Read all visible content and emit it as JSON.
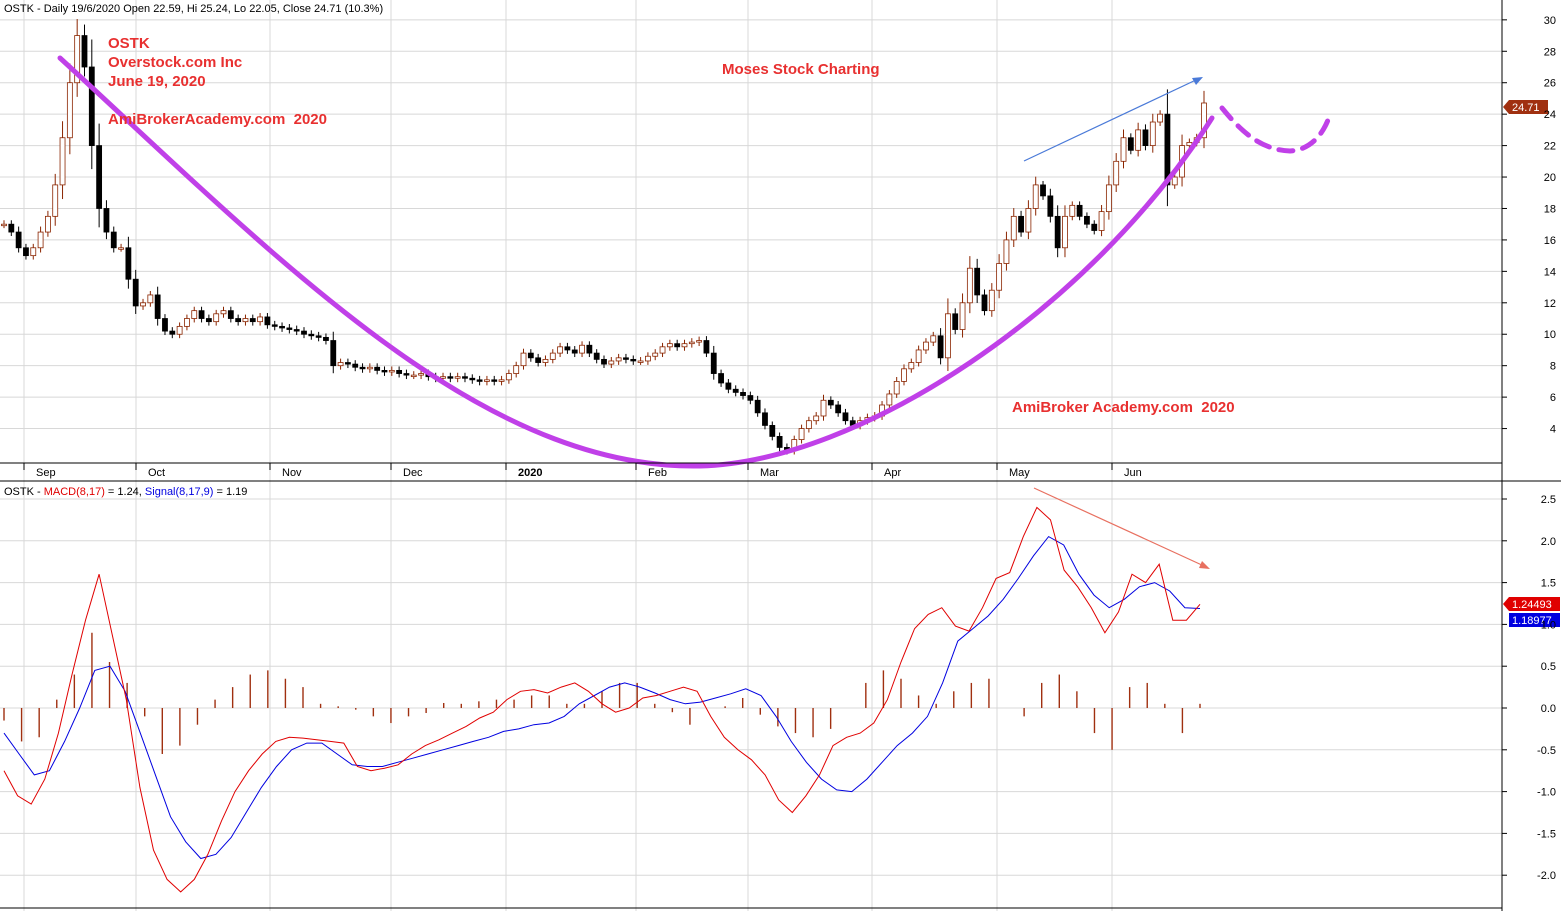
{
  "price_header": {
    "prefix": "OSTK - Daily 19/6/2020 Open 22.59, Hi 25.24, Lo 22.05, Close 24.71 (10.3%)"
  },
  "macd_header": {
    "prefix": "OSTK - ",
    "macd_label": "MACD(8,17)",
    "macd_value": " = 1.24, ",
    "signal_label": "Signal(8,17,9)",
    "signal_value": " = 1.19"
  },
  "annotations": {
    "ticker": "OSTK",
    "company": "Overstock.com Inc",
    "date": "June 19, 2020",
    "site_top": "AmiBrokerAcademy.com  2020",
    "moses": "Moses Stock Charting",
    "site_bottom": "AmiBroker Academy.com  2020"
  },
  "badges": {
    "price": "24.71",
    "macd": "1.24493",
    "signal": "1.18977"
  },
  "colors": {
    "bull_body": "#ffffff",
    "candle_outline": "#8b2500",
    "bear_body": "#000000",
    "cup_curve": "#c040e8",
    "macd_line": "#e00000",
    "signal_line": "#0000e0",
    "histogram": "#a03010",
    "grid": "#d8d8d8",
    "annotation_text": "#e83030",
    "price_badge": "#a03010",
    "macd_badge": "#e00000",
    "signal_badge": "#0000e0"
  },
  "chart_data": [
    {
      "type": "candlestick",
      "title": "OSTK - Daily 19/6/2020 Open 22.59, Hi 25.24, Lo 22.05, Close 24.71 (10.3%)",
      "x_ticks": [
        "Sep",
        "Oct",
        "Nov",
        "Dec",
        "2020",
        "Feb",
        "Mar",
        "Apr",
        "May",
        "Jun"
      ],
      "y_ticks": [
        4,
        6,
        8,
        10,
        12,
        14,
        16,
        18,
        20,
        22,
        24,
        26,
        28,
        30
      ],
      "ylim": [
        2,
        31
      ],
      "grid": true,
      "last_close": 24.71,
      "closes": [
        17.0,
        16.5,
        15.5,
        15.0,
        15.5,
        16.5,
        17.5,
        19.5,
        22.5,
        26.0,
        29.0,
        27.0,
        22.0,
        18.0,
        16.5,
        15.5,
        15.5,
        13.5,
        11.8,
        12.0,
        12.5,
        11.0,
        10.2,
        10.0,
        10.5,
        11.0,
        11.5,
        11.0,
        10.8,
        11.3,
        11.5,
        11.0,
        10.8,
        11.0,
        10.8,
        11.1,
        10.6,
        10.5,
        10.4,
        10.3,
        10.2,
        10.0,
        9.9,
        9.8,
        9.6,
        8.0,
        8.2,
        8.1,
        7.9,
        7.8,
        7.9,
        7.7,
        7.6,
        7.7,
        7.5,
        7.4,
        7.4,
        7.5,
        7.3,
        7.2,
        7.3,
        7.2,
        7.3,
        7.2,
        7.1,
        7.0,
        7.1,
        7.0,
        7.1,
        7.5,
        8.0,
        8.8,
        8.5,
        8.2,
        8.4,
        8.8,
        9.2,
        9.0,
        8.8,
        9.3,
        8.8,
        8.4,
        8.1,
        8.3,
        8.5,
        8.4,
        8.3,
        8.3,
        8.6,
        8.8,
        9.2,
        9.4,
        9.2,
        9.4,
        9.5,
        9.6,
        8.8,
        7.5,
        6.9,
        6.5,
        6.3,
        6.1,
        5.8,
        5.0,
        4.2,
        3.5,
        2.8,
        2.6,
        3.3,
        4.0,
        4.5,
        4.8,
        5.8,
        5.5,
        5.0,
        4.5,
        4.2,
        4.5,
        4.7,
        4.8,
        5.5,
        6.2,
        7.0,
        7.8,
        8.2,
        9.0,
        9.5,
        9.9,
        8.5,
        11.3,
        10.3,
        12.0,
        14.2,
        12.5,
        11.5,
        12.8,
        14.5,
        16.0,
        17.5,
        16.5,
        18.0,
        19.5,
        18.8,
        17.5,
        15.5,
        17.5,
        18.2,
        17.5,
        17.0,
        16.6,
        17.8,
        19.5,
        21.0,
        22.5,
        21.7,
        23.0,
        22.0,
        23.5,
        24.0,
        19.5,
        20.0,
        22.0,
        22.2,
        22.5,
        24.71
      ]
    },
    {
      "type": "line",
      "title": "OSTK - MACD(8,17) = 1.24, Signal(8,17,9) = 1.19",
      "x_ticks": [
        "Sep",
        "Oct",
        "Nov",
        "Dec",
        "2020",
        "Feb",
        "Mar",
        "Apr",
        "May",
        "Jun"
      ],
      "y_ticks": [
        -2.0,
        -1.5,
        -1.0,
        -0.5,
        0.0,
        0.5,
        1.0,
        1.5,
        2.0,
        2.5
      ],
      "ylim": [
        -2.4,
        2.7
      ],
      "grid": true,
      "series": [
        {
          "name": "MACD(8,17)",
          "color": "#e00000",
          "points": [
            [
              0,
              -0.75
            ],
            [
              1,
              -1.05
            ],
            [
              2,
              -1.15
            ],
            [
              3,
              -0.85
            ],
            [
              4,
              -0.3
            ],
            [
              5,
              0.4
            ],
            [
              6,
              1.05
            ],
            [
              7,
              1.6
            ],
            [
              8,
              0.85
            ],
            [
              9,
              0.1
            ],
            [
              10,
              -0.95
            ],
            [
              11,
              -1.7
            ],
            [
              12,
              -2.05
            ],
            [
              13,
              -2.2
            ],
            [
              14,
              -2.05
            ],
            [
              15,
              -1.75
            ],
            [
              16,
              -1.35
            ],
            [
              17,
              -1.0
            ],
            [
              18,
              -0.75
            ],
            [
              19,
              -0.55
            ],
            [
              20,
              -0.4
            ],
            [
              21,
              -0.35
            ],
            [
              22,
              -0.36
            ],
            [
              23,
              -0.38
            ],
            [
              24,
              -0.4
            ],
            [
              25,
              -0.42
            ],
            [
              26,
              -0.7
            ],
            [
              27,
              -0.75
            ],
            [
              28,
              -0.72
            ],
            [
              29,
              -0.68
            ],
            [
              30,
              -0.55
            ],
            [
              31,
              -0.45
            ],
            [
              32,
              -0.38
            ],
            [
              33,
              -0.3
            ],
            [
              34,
              -0.22
            ],
            [
              35,
              -0.12
            ],
            [
              36,
              -0.05
            ],
            [
              37,
              0.1
            ],
            [
              38,
              0.2
            ],
            [
              39,
              0.22
            ],
            [
              40,
              0.18
            ],
            [
              41,
              0.25
            ],
            [
              42,
              0.3
            ],
            [
              43,
              0.2
            ],
            [
              44,
              0.05
            ],
            [
              45,
              -0.05
            ],
            [
              46,
              0.0
            ],
            [
              47,
              0.12
            ],
            [
              48,
              0.15
            ],
            [
              49,
              0.2
            ],
            [
              50,
              0.25
            ],
            [
              51,
              0.2
            ],
            [
              52,
              -0.1
            ],
            [
              53,
              -0.35
            ],
            [
              54,
              -0.5
            ],
            [
              55,
              -0.62
            ],
            [
              56,
              -0.8
            ],
            [
              57,
              -1.1
            ],
            [
              58,
              -1.25
            ],
            [
              59,
              -1.05
            ],
            [
              60,
              -0.8
            ],
            [
              61,
              -0.45
            ],
            [
              62,
              -0.35
            ],
            [
              63,
              -0.3
            ],
            [
              64,
              -0.18
            ],
            [
              65,
              0.1
            ],
            [
              66,
              0.55
            ],
            [
              67,
              0.95
            ],
            [
              68,
              1.12
            ],
            [
              69,
              1.2
            ],
            [
              70,
              0.98
            ],
            [
              71,
              0.92
            ],
            [
              72,
              1.2
            ],
            [
              73,
              1.55
            ],
            [
              74,
              1.62
            ],
            [
              75,
              2.05
            ],
            [
              76,
              2.4
            ],
            [
              77,
              2.25
            ],
            [
              78,
              1.65
            ],
            [
              79,
              1.45
            ],
            [
              80,
              1.2
            ],
            [
              81,
              0.9
            ],
            [
              82,
              1.15
            ],
            [
              83,
              1.6
            ],
            [
              84,
              1.5
            ],
            [
              85,
              1.72
            ],
            [
              86,
              1.05
            ],
            [
              87,
              1.05
            ],
            [
              88,
              1.24
            ]
          ]
        },
        {
          "name": "Signal(8,17,9)",
          "color": "#0000e0",
          "points": [
            [
              0,
              -0.3
            ],
            [
              1,
              -0.55
            ],
            [
              2,
              -0.8
            ],
            [
              3,
              -0.75
            ],
            [
              4,
              -0.4
            ],
            [
              5,
              0.0
            ],
            [
              6,
              0.45
            ],
            [
              7,
              0.5
            ],
            [
              8,
              0.2
            ],
            [
              9,
              -0.3
            ],
            [
              10,
              -0.8
            ],
            [
              11,
              -1.3
            ],
            [
              12,
              -1.6
            ],
            [
              13,
              -1.8
            ],
            [
              14,
              -1.75
            ],
            [
              15,
              -1.55
            ],
            [
              16,
              -1.25
            ],
            [
              17,
              -0.95
            ],
            [
              18,
              -0.7
            ],
            [
              19,
              -0.5
            ],
            [
              20,
              -0.42
            ],
            [
              21,
              -0.42
            ],
            [
              22,
              -0.55
            ],
            [
              23,
              -0.68
            ],
            [
              24,
              -0.7
            ],
            [
              25,
              -0.7
            ],
            [
              26,
              -0.65
            ],
            [
              27,
              -0.6
            ],
            [
              28,
              -0.55
            ],
            [
              29,
              -0.5
            ],
            [
              30,
              -0.45
            ],
            [
              31,
              -0.4
            ],
            [
              32,
              -0.35
            ],
            [
              33,
              -0.28
            ],
            [
              34,
              -0.25
            ],
            [
              35,
              -0.2
            ],
            [
              36,
              -0.18
            ],
            [
              37,
              -0.1
            ],
            [
              38,
              0.05
            ],
            [
              39,
              0.15
            ],
            [
              40,
              0.25
            ],
            [
              41,
              0.3
            ],
            [
              42,
              0.25
            ],
            [
              43,
              0.18
            ],
            [
              44,
              0.1
            ],
            [
              45,
              0.05
            ],
            [
              46,
              0.07
            ],
            [
              47,
              0.12
            ],
            [
              48,
              0.17
            ],
            [
              49,
              0.23
            ],
            [
              50,
              0.15
            ],
            [
              51,
              -0.1
            ],
            [
              52,
              -0.4
            ],
            [
              53,
              -0.65
            ],
            [
              54,
              -0.85
            ],
            [
              55,
              -0.98
            ],
            [
              56,
              -1.0
            ],
            [
              57,
              -0.85
            ],
            [
              58,
              -0.65
            ],
            [
              59,
              -0.45
            ],
            [
              60,
              -0.3
            ],
            [
              61,
              -0.1
            ],
            [
              62,
              0.3
            ],
            [
              63,
              0.8
            ],
            [
              64,
              0.95
            ],
            [
              65,
              1.1
            ],
            [
              66,
              1.3
            ],
            [
              67,
              1.55
            ],
            [
              68,
              1.82
            ],
            [
              69,
              2.05
            ],
            [
              70,
              1.95
            ],
            [
              71,
              1.6
            ],
            [
              72,
              1.35
            ],
            [
              73,
              1.2
            ],
            [
              74,
              1.3
            ],
            [
              75,
              1.45
            ],
            [
              76,
              1.5
            ],
            [
              77,
              1.4
            ],
            [
              78,
              1.2
            ],
            [
              79,
              1.19
            ]
          ]
        },
        {
          "name": "Histogram",
          "color": "#a03010",
          "values": [
            -0.15,
            -0.4,
            -0.35,
            0.1,
            0.4,
            0.9,
            0.55,
            0.3,
            -0.1,
            -0.55,
            -0.45,
            -0.2,
            0.1,
            0.25,
            0.4,
            0.45,
            0.35,
            0.25,
            0.05,
            0.02,
            -0.02,
            -0.1,
            -0.18,
            -0.1,
            -0.06,
            0.06,
            0.05,
            0.08,
            0.1,
            0.1,
            0.15,
            0.15,
            0.05,
            0.05,
            0.2,
            0.3,
            0.3,
            0.05,
            -0.05,
            -0.2,
            0.0,
            0.02,
            0.12,
            -0.08,
            -0.22,
            -0.3,
            -0.35,
            -0.25,
            0.0,
            0.3,
            0.45,
            0.35,
            0.15,
            0.05,
            0.2,
            0.3,
            0.35,
            0.0,
            -0.1,
            0.3,
            0.4,
            0.2,
            -0.3,
            -0.5,
            0.25,
            0.3,
            0.05,
            -0.3,
            0.05
          ]
        }
      ]
    }
  ]
}
